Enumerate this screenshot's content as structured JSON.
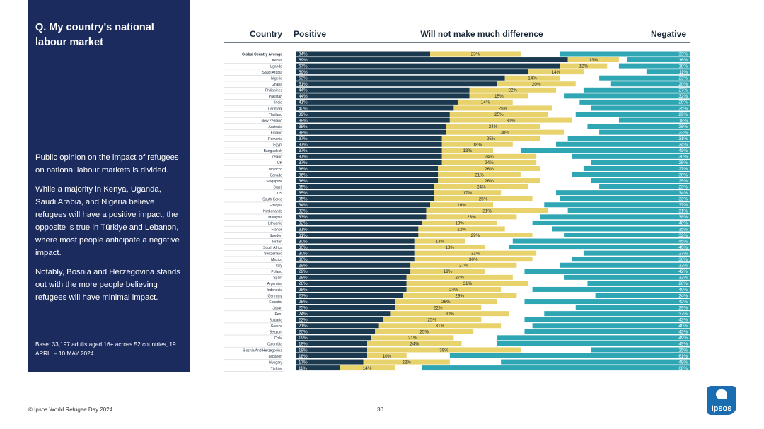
{
  "panel": {
    "title": "Q. My country's national labour market",
    "paragraphs": [
      "Public opinion on the impact of refugees on national labour markets is divided.",
      "While a majority in Kenya, Uganda, Saudi Arabia, and Nigeria believe refugees will have a positive impact, the opposite is true in Türkiye and Lebanon, where most people anticipate a negative impact.",
      "Notably, Bosnia and Herzegovina stands out with the more people believing refugees will have minimal impact."
    ],
    "base": "Base: 33,197 adults aged 16+ across 52 countries, 19 APRIL – 10 MAY 2024"
  },
  "footer": {
    "source": "© Ipsos World Refugee Day 2024",
    "page": "30"
  },
  "logo": {
    "text": "Ipsos"
  },
  "colors": {
    "positive": "#1b3a4f",
    "neutral": "#e8d26b",
    "other": "#ffffff",
    "negative": "#2fa6b4",
    "panel": "#1b2b5e"
  },
  "chart_data": {
    "type": "bar",
    "stacked": true,
    "orientation": "horizontal",
    "headers": {
      "country": "Country",
      "positive": "Positive",
      "neutral": "Will not make much difference",
      "negative": "Negative"
    },
    "categories": [
      "Global Country Average",
      "Kenya",
      "Uganda",
      "Saudi Arabia",
      "Nigeria",
      "Ghana",
      "Philippines",
      "Pakistan",
      "India",
      "Denmark",
      "Thailand",
      "New Zealand",
      "Australia",
      "Finland",
      "Romania",
      "Egypt",
      "Bangladesh",
      "Ireland",
      "UK",
      "Morocco",
      "Canada",
      "Singapore",
      "Brazil",
      "US",
      "South Korea",
      "Ethiopia",
      "Netherlands",
      "Malaysia",
      "Lithuania",
      "France",
      "Sweden",
      "Jordan",
      "South Africa",
      "Switzerland",
      "Mexico",
      "Italy",
      "Poland",
      "Spain",
      "Argentina",
      "Indonesia",
      "Germany",
      "Ecuador",
      "Japan",
      "Peru",
      "Bulgaria",
      "Greece",
      "Belgium",
      "Chile",
      "Colombia",
      "Bosnia And Herzegovina",
      "Lebanon",
      "Hungary",
      "Türkiye"
    ],
    "series": [
      {
        "name": "Positive",
        "values": [
          34,
          69,
          67,
          59,
          53,
          51,
          44,
          44,
          41,
          40,
          39,
          39,
          38,
          38,
          37,
          37,
          37,
          37,
          37,
          36,
          36,
          36,
          35,
          35,
          35,
          34,
          33,
          33,
          32,
          31,
          31,
          30,
          30,
          30,
          30,
          29,
          29,
          28,
          28,
          28,
          27,
          25,
          25,
          24,
          22,
          21,
          20,
          19,
          18,
          18,
          18,
          17,
          11
        ]
      },
      {
        "name": "Will not make much difference",
        "values": [
          23,
          13,
          12,
          14,
          14,
          20,
          22,
          15,
          14,
          25,
          25,
          31,
          24,
          30,
          25,
          18,
          13,
          24,
          24,
          26,
          21,
          26,
          24,
          17,
          25,
          16,
          31,
          23,
          19,
          22,
          29,
          13,
          18,
          31,
          30,
          27,
          19,
          27,
          31,
          24,
          29,
          26,
          22,
          30,
          25,
          31,
          25,
          21,
          24,
          39,
          10,
          22,
          14
        ]
      },
      {
        "name": "Negative",
        "values": [
          33,
          16,
          18,
          11,
          23,
          20,
          27,
          32,
          28,
          25,
          29,
          18,
          26,
          23,
          31,
          34,
          43,
          30,
          25,
          27,
          30,
          25,
          23,
          34,
          33,
          37,
          31,
          38,
          40,
          35,
          32,
          45,
          46,
          27,
          30,
          33,
          42,
          32,
          26,
          40,
          24,
          42,
          29,
          37,
          42,
          40,
          42,
          49,
          49,
          25,
          61,
          48,
          68
        ]
      }
    ],
    "xlim": [
      0,
      100
    ],
    "xlabel": "",
    "ylabel": ""
  }
}
